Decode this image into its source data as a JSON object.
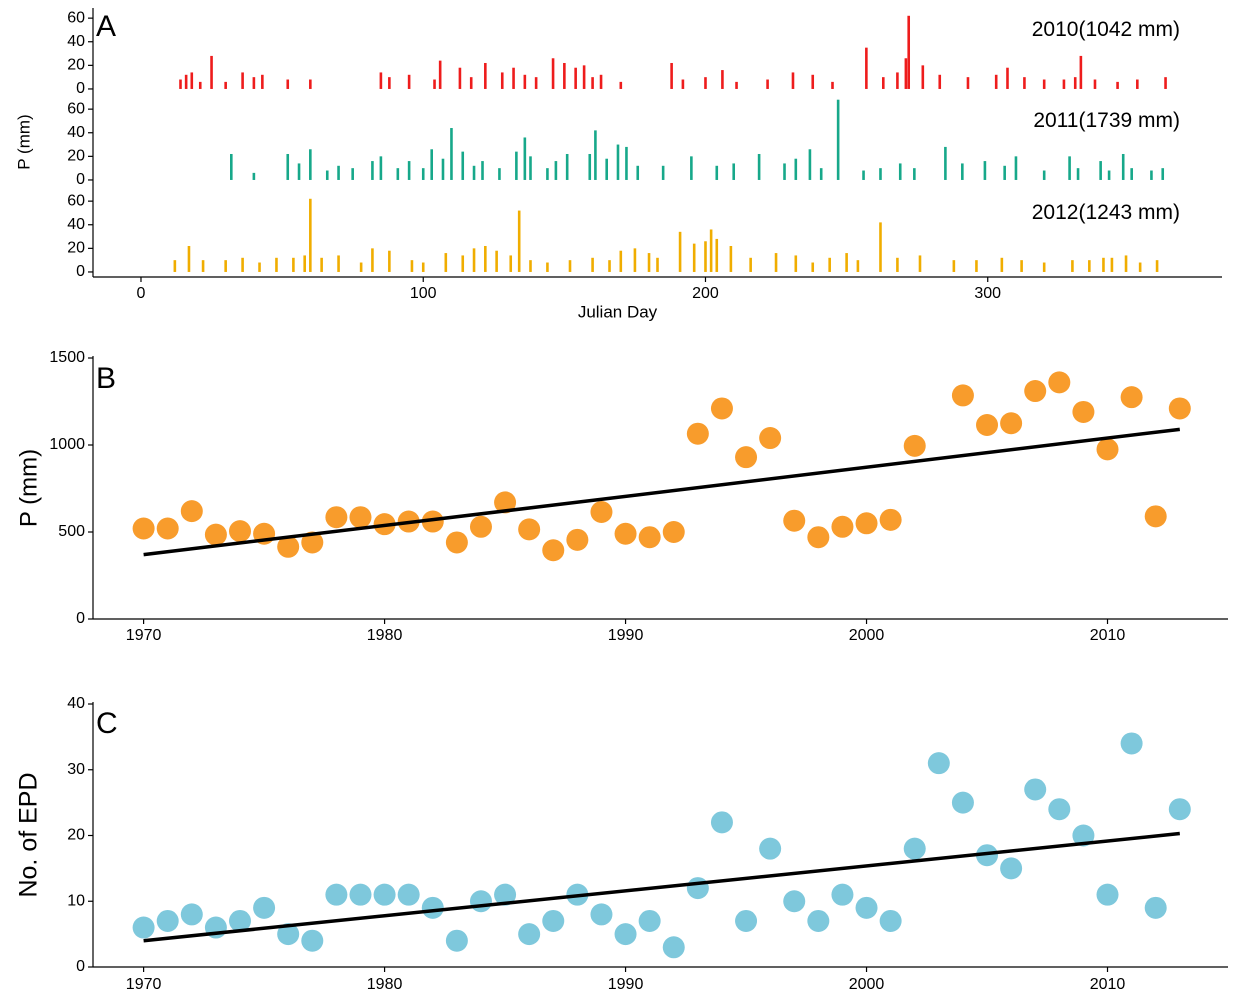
{
  "chart_data": [
    {
      "type": "bar",
      "label": "A",
      "ylabel": "P (mm)",
      "xlabel": "Julian Day",
      "xlim": [
        -17,
        383
      ],
      "xticks": [
        0,
        100,
        200,
        300
      ],
      "ylim": [
        -3,
        68
      ],
      "yticks": [
        0,
        20,
        40,
        60
      ],
      "series": [
        {
          "name": "2010(1042 mm)",
          "color": "#ee1c1c",
          "x": [
            14,
            16,
            18,
            21,
            25,
            30,
            36,
            40,
            43,
            52,
            60,
            85,
            88,
            95,
            104,
            106,
            113,
            117,
            122,
            128,
            132,
            136,
            140,
            146,
            150,
            154,
            157,
            160,
            163,
            170,
            188,
            192,
            200,
            206,
            211,
            222,
            231,
            238,
            245,
            257,
            263,
            268,
            271,
            272,
            277,
            283,
            293,
            303,
            307,
            313,
            320,
            327,
            331,
            333,
            338,
            346,
            353,
            363
          ],
          "values": [
            8,
            12,
            14,
            6,
            28,
            6,
            14,
            10,
            12,
            8,
            8,
            14,
            10,
            12,
            8,
            24,
            18,
            10,
            22,
            14,
            18,
            12,
            10,
            26,
            22,
            18,
            20,
            10,
            12,
            6,
            22,
            8,
            10,
            16,
            6,
            8,
            14,
            12,
            6,
            35,
            10,
            14,
            26,
            62,
            20,
            12,
            10,
            12,
            18,
            10,
            8,
            8,
            10,
            28,
            8,
            6,
            8,
            10
          ]
        },
        {
          "name": "2011(1739 mm)",
          "color": "#17a88a",
          "x": [
            32,
            40,
            52,
            56,
            60,
            66,
            70,
            75,
            82,
            85,
            91,
            95,
            100,
            103,
            107,
            110,
            114,
            118,
            121,
            127,
            133,
            136,
            138,
            144,
            147,
            151,
            159,
            161,
            165,
            169,
            172,
            176,
            185,
            195,
            204,
            210,
            219,
            228,
            232,
            237,
            241,
            247,
            256,
            262,
            269,
            274,
            285,
            291,
            299,
            306,
            310,
            320,
            329,
            332,
            340,
            343,
            348,
            351,
            358,
            362
          ],
          "values": [
            22,
            6,
            22,
            14,
            26,
            8,
            12,
            10,
            16,
            20,
            10,
            16,
            10,
            26,
            18,
            44,
            24,
            12,
            16,
            10,
            24,
            36,
            20,
            10,
            16,
            22,
            22,
            42,
            18,
            30,
            28,
            12,
            12,
            20,
            12,
            14,
            22,
            14,
            18,
            26,
            10,
            68,
            8,
            10,
            14,
            10,
            28,
            14,
            16,
            12,
            20,
            8,
            20,
            10,
            16,
            8,
            22,
            10,
            8,
            10
          ]
        },
        {
          "name": "2012(1243 mm)",
          "color": "#f0ad00",
          "x": [
            12,
            17,
            22,
            30,
            36,
            42,
            48,
            54,
            58,
            60,
            64,
            70,
            78,
            82,
            88,
            96,
            100,
            108,
            114,
            118,
            122,
            126,
            131,
            134,
            138,
            144,
            152,
            160,
            166,
            170,
            175,
            180,
            183,
            191,
            196,
            200,
            202,
            204,
            209,
            216,
            225,
            232,
            238,
            244,
            250,
            254,
            262,
            268,
            276,
            288,
            296,
            305,
            312,
            320,
            330,
            336,
            341,
            344,
            349,
            354,
            360
          ],
          "values": [
            10,
            22,
            10,
            10,
            12,
            8,
            12,
            12,
            14,
            62,
            12,
            14,
            8,
            20,
            18,
            10,
            8,
            16,
            14,
            20,
            22,
            18,
            14,
            52,
            10,
            8,
            10,
            12,
            10,
            18,
            20,
            16,
            12,
            34,
            24,
            26,
            36,
            28,
            22,
            12,
            16,
            14,
            8,
            12,
            16,
            10,
            42,
            12,
            14,
            10,
            10,
            12,
            10,
            8,
            10,
            10,
            12,
            12,
            14,
            8,
            10
          ]
        }
      ]
    },
    {
      "type": "scatter",
      "label": "B",
      "ylabel": "P (mm)",
      "xlim": [
        1967.9,
        2015.0
      ],
      "xticks": [
        1970,
        1980,
        1990,
        2000,
        2010
      ],
      "ylim": [
        0,
        1500
      ],
      "yticks": [
        0,
        500,
        1000,
        1500
      ],
      "color": "#f89c2c",
      "x": [
        1970,
        1971,
        1972,
        1973,
        1974,
        1975,
        1976,
        1977,
        1978,
        1979,
        1980,
        1981,
        1982,
        1983,
        1984,
        1985,
        1986,
        1987,
        1988,
        1989,
        1990,
        1991,
        1992,
        1993,
        1994,
        1995,
        1996,
        1997,
        1998,
        1999,
        2000,
        2001,
        2002,
        2003,
        2004,
        2005,
        2006,
        2007,
        2008,
        2009,
        2010,
        2011,
        2012,
        2013
      ],
      "values": [
        520,
        520,
        620,
        485,
        505,
        490,
        415,
        440,
        585,
        585,
        545,
        560,
        560,
        440,
        530,
        670,
        515,
        395,
        455,
        615,
        490,
        470,
        500,
        1065,
        1210,
        930,
        1040,
        565,
        470,
        530,
        550,
        570,
        995,
        null,
        1285,
        1115,
        1125,
        1310,
        1360,
        1190,
        975,
        1275,
        590,
        1210
      ],
      "trend": {
        "color": "#000000",
        "x": [
          1970,
          2013
        ],
        "values": [
          370,
          1090
        ]
      }
    },
    {
      "type": "scatter",
      "label": "C",
      "ylabel": "No. of EPD",
      "xlim": [
        1967.9,
        2015.0
      ],
      "xticks": [
        1970,
        1980,
        1990,
        2000,
        2010
      ],
      "ylim": [
        0,
        40
      ],
      "yticks": [
        0,
        10,
        20,
        30,
        40
      ],
      "color": "#7ec8dc",
      "x": [
        1970,
        1971,
        1972,
        1973,
        1974,
        1975,
        1976,
        1977,
        1978,
        1979,
        1980,
        1981,
        1982,
        1983,
        1984,
        1985,
        1986,
        1987,
        1988,
        1989,
        1990,
        1991,
        1992,
        1993,
        1994,
        1995,
        1996,
        1997,
        1998,
        1999,
        2000,
        2001,
        2002,
        2003,
        2004,
        2005,
        2006,
        2007,
        2008,
        2009,
        2010,
        2011,
        2012,
        2013
      ],
      "values": [
        6,
        7,
        8,
        6,
        7,
        9,
        5,
        4,
        11,
        11,
        11,
        11,
        9,
        4,
        10,
        11,
        5,
        7,
        11,
        8,
        5,
        7,
        3,
        12,
        22,
        7,
        18,
        10,
        7,
        11,
        9,
        7,
        18,
        31,
        25,
        17,
        15,
        27,
        24,
        20,
        11,
        34,
        9,
        24
      ],
      "trend": {
        "color": "#000000",
        "x": [
          1970,
          2013
        ],
        "values": [
          4,
          20.3
        ]
      }
    }
  ]
}
